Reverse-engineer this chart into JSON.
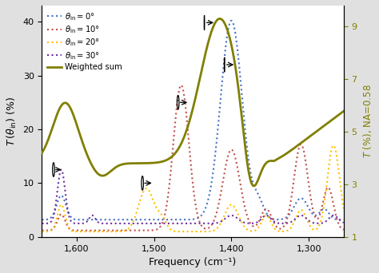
{
  "xlabel": "Frequency (cm⁻¹)",
  "ylabel_left": "T (θ_in) (%)",
  "ylabel_right": "T (%), NA=0.58",
  "xlim": [
    1645,
    1255
  ],
  "ylim_left": [
    0,
    43
  ],
  "ylim_right": [
    1,
    9.8
  ],
  "x_ticks": [
    1600,
    1500,
    1400,
    1300
  ],
  "x_tick_labels": [
    "1,600",
    "1,500",
    "1,400",
    "1,300"
  ],
  "y_ticks_left": [
    0,
    10,
    20,
    30,
    40
  ],
  "y_ticks_right": [
    1,
    3,
    5,
    7,
    9
  ],
  "colors": {
    "theta0": "#4472C4",
    "theta10": "#C0504D",
    "theta20": "#FFC000",
    "theta30": "#7030A0",
    "weighted": "#808000"
  },
  "legend_labels": [
    "θ_in = 0°",
    "θ_in = 10°",
    "θ_in = 20°",
    "θ_in = 30°",
    "Weighted sum"
  ],
  "background_color": "#e0e0e0"
}
